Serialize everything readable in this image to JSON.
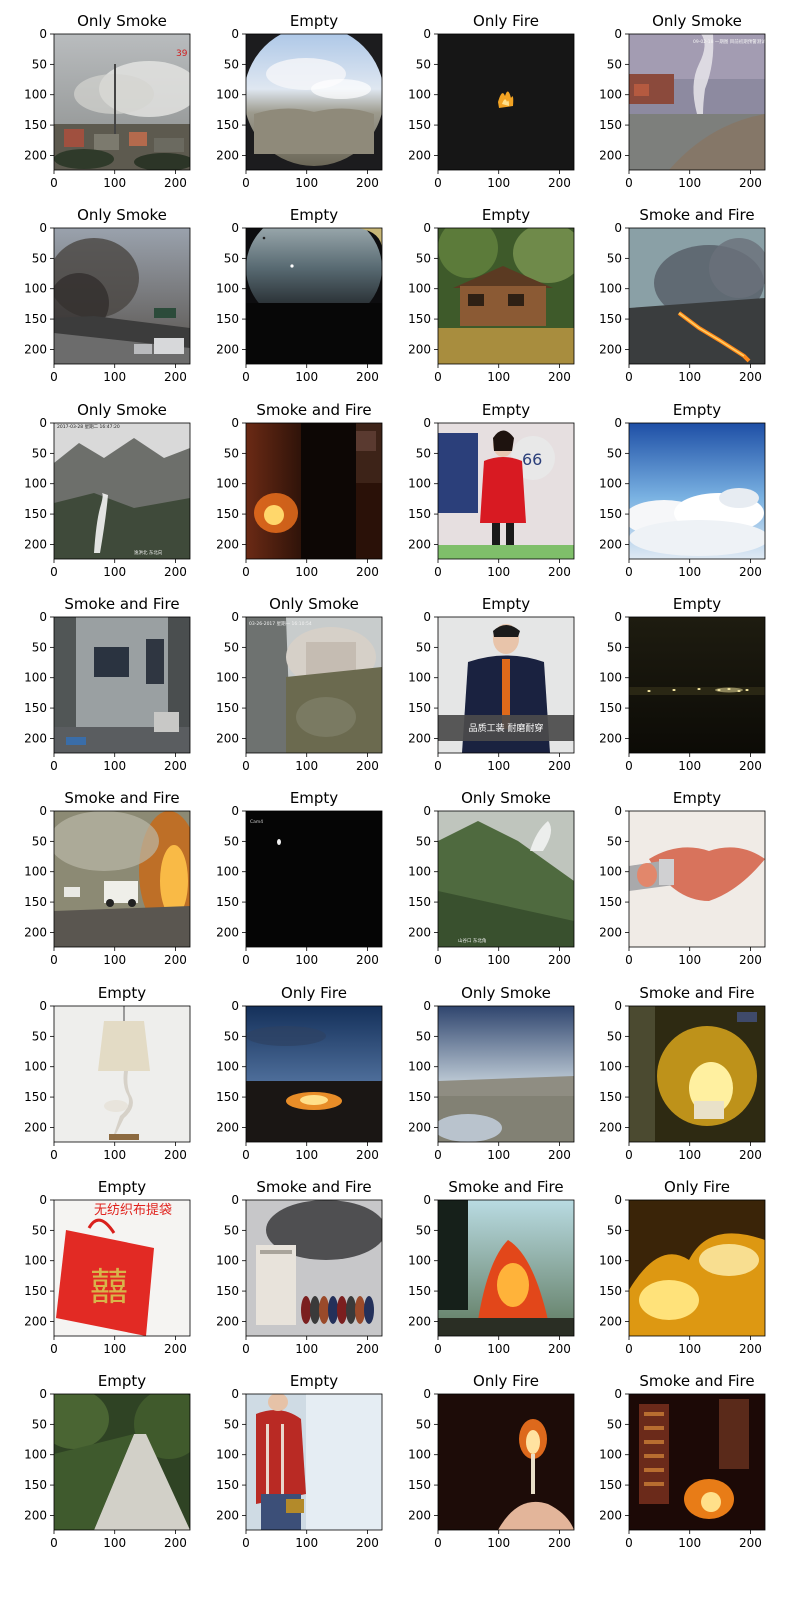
{
  "figure": {
    "panels": [
      {
        "title": "Only Smoke",
        "scene": "smoke-hill-town",
        "text": [
          "39"
        ]
      },
      {
        "title": "Empty",
        "scene": "fisheye-sky-hills",
        "text": []
      },
      {
        "title": "Only Fire",
        "scene": "small-flame-dark",
        "text": []
      },
      {
        "title": "Only Smoke",
        "scene": "smoke-village-plume",
        "text": [
          "09-02-18 一期图 目前初期预警测试"
        ]
      },
      {
        "title": "Only Smoke",
        "scene": "smoke-highway-cars",
        "text": []
      },
      {
        "title": "Empty",
        "scene": "night-sky-fisheye",
        "text": []
      },
      {
        "title": "Empty",
        "scene": "log-cabin-forest",
        "text": []
      },
      {
        "title": "Smoke and Fire",
        "scene": "wildfire-line-smoke",
        "text": []
      },
      {
        "title": "Only Smoke",
        "scene": "mountain-valley-smoke",
        "text": [
          "2017-03-28 星期二 16:47:20",
          "逸洪北 东北向"
        ]
      },
      {
        "title": "Smoke and Fire",
        "scene": "indoor-fire-dark",
        "text": []
      },
      {
        "title": "Empty",
        "scene": "woman-red-coat",
        "text": [
          "66"
        ]
      },
      {
        "title": "Empty",
        "scene": "sky-clouds",
        "text": []
      },
      {
        "title": "Smoke and Fire",
        "scene": "warehouse-interior",
        "text": []
      },
      {
        "title": "Only Smoke",
        "scene": "cliff-town-cam",
        "text": [
          "03-26-2017 星期一 16:10:54"
        ]
      },
      {
        "title": "Empty",
        "scene": "man-workwear",
        "text": [
          "品质工装 耐磨耐穿"
        ]
      },
      {
        "title": "Empty",
        "scene": "night-city-distant",
        "text": []
      },
      {
        "title": "Smoke and Fire",
        "scene": "road-fire-vehicles",
        "text": []
      },
      {
        "title": "Empty",
        "scene": "night-dark-dot",
        "text": []
      },
      {
        "title": "Only Smoke",
        "scene": "green-slope-smoke",
        "text": [
          "山谷口 东北角"
        ]
      },
      {
        "title": "Empty",
        "scene": "lipstick-lips",
        "text": []
      },
      {
        "title": "Empty",
        "scene": "flamingo-lamp",
        "text": []
      },
      {
        "title": "Only Fire",
        "scene": "bonfire-dusk",
        "text": []
      },
      {
        "title": "Only Smoke",
        "scene": "landscape-cam-sky",
        "text": []
      },
      {
        "title": "Smoke and Fire",
        "scene": "room-fire-yellow",
        "text": []
      },
      {
        "title": "Empty",
        "scene": "red-bag",
        "text": [
          "无纺织布提袋",
          "囍"
        ]
      },
      {
        "title": "Smoke and Fire",
        "scene": "building-smoke-crowd",
        "text": []
      },
      {
        "title": "Smoke and Fire",
        "scene": "house-fire-trees",
        "text": []
      },
      {
        "title": "Only Fire",
        "scene": "grass-fire-bright",
        "text": []
      },
      {
        "title": "Empty",
        "scene": "forest-road",
        "text": []
      },
      {
        "title": "Empty",
        "scene": "worker-plaid-shirt",
        "text": []
      },
      {
        "title": "Only Fire",
        "scene": "match-flame",
        "text": []
      },
      {
        "title": "Smoke and Fire",
        "scene": "city-building-fire",
        "text": []
      }
    ]
  },
  "chart_data": {
    "type": "image-grid",
    "rows": 8,
    "cols": 4,
    "xlim": [
      0,
      224
    ],
    "ylim": [
      224,
      0
    ],
    "xticks": [
      0,
      100,
      200
    ],
    "yticks": [
      0,
      50,
      100,
      150,
      200
    ],
    "categories": [
      "Only Smoke",
      "Empty",
      "Only Fire",
      "Smoke and Fire"
    ],
    "labels": [
      "Only Smoke",
      "Empty",
      "Only Fire",
      "Only Smoke",
      "Only Smoke",
      "Empty",
      "Empty",
      "Smoke and Fire",
      "Only Smoke",
      "Smoke and Fire",
      "Empty",
      "Empty",
      "Smoke and Fire",
      "Only Smoke",
      "Empty",
      "Empty",
      "Smoke and Fire",
      "Empty",
      "Only Smoke",
      "Empty",
      "Empty",
      "Only Fire",
      "Only Smoke",
      "Smoke and Fire",
      "Empty",
      "Smoke and Fire",
      "Smoke and Fire",
      "Only Fire",
      "Empty",
      "Empty",
      "Only Fire",
      "Smoke and Fire"
    ]
  }
}
